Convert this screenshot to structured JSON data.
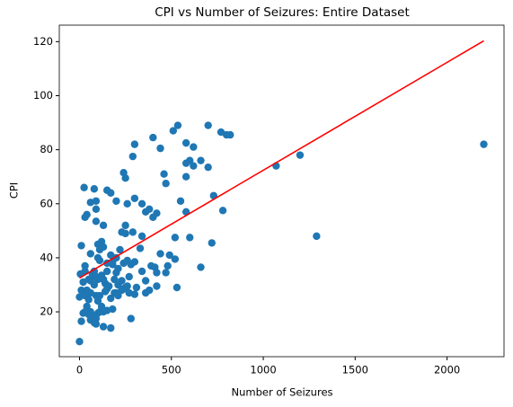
{
  "chart_data": {
    "type": "scatter",
    "title": "CPI vs Number of Seizures: Entire Dataset",
    "xlabel": "Number of Seizures",
    "ylabel": "CPI",
    "color": "#1f77b4",
    "x": [
      700,
      535,
      510,
      770,
      800,
      820,
      400,
      300,
      580,
      620,
      440,
      290,
      600,
      660,
      580,
      700,
      620,
      460,
      240,
      250,
      580,
      470,
      25,
      80,
      150,
      170,
      730,
      300,
      200,
      550,
      340,
      60,
      90,
      260,
      380,
      780,
      360,
      420,
      580,
      90,
      40,
      30,
      400,
      130,
      250,
      90,
      230,
      290,
      250,
      340,
      600,
      520,
      720,
      10,
      120,
      130,
      110,
      100,
      220,
      330,
      170,
      200,
      440,
      490,
      60,
      100,
      110,
      30,
      150,
      180,
      240,
      260,
      300,
      280,
      390,
      410,
      480,
      660,
      520,
      30,
      70,
      90,
      120,
      150,
      200,
      340,
      420,
      470,
      5,
      20,
      50,
      100,
      140,
      190,
      230,
      270,
      360,
      80,
      160,
      210,
      250,
      310,
      420,
      530,
      10,
      40,
      60,
      90,
      140,
      190,
      230,
      270,
      360,
      380,
      0,
      30,
      110,
      170,
      210,
      240,
      260,
      40,
      120,
      60,
      110,
      150,
      180,
      20,
      70,
      90,
      130,
      60,
      80,
      90,
      10,
      130,
      170,
      280,
      0,
      50,
      100,
      30,
      200,
      300,
      150,
      80,
      60,
      130,
      210,
      180,
      100,
      50,
      2200,
      1290,
      1200,
      1070
    ],
    "values": [
      89,
      89,
      87,
      86.5,
      85.5,
      85.5,
      84.5,
      82,
      82.5,
      81,
      80.5,
      77.5,
      76,
      76,
      75,
      73.5,
      74,
      71,
      71.5,
      69.5,
      70,
      67.5,
      66,
      65.5,
      65,
      64,
      63,
      62,
      61,
      61,
      60,
      60.5,
      61,
      60,
      58,
      57.5,
      57,
      56.5,
      57,
      58,
      56,
      55,
      55,
      52,
      52,
      53.5,
      49.5,
      49.5,
      49,
      48,
      47.5,
      47.5,
      45.5,
      44.5,
      46,
      44,
      43,
      45,
      43,
      43.5,
      41,
      40,
      41.5,
      41,
      41.5,
      40,
      39,
      37,
      38,
      37.5,
      38,
      39,
      38.5,
      37.5,
      37,
      36.5,
      37,
      36.5,
      39.5,
      35,
      34,
      33,
      33.5,
      35,
      34.5,
      35,
      34.5,
      34.5,
      34,
      31,
      32,
      32,
      30.5,
      32,
      31.5,
      33,
      31.5,
      30,
      29.5,
      30,
      29,
      29,
      29.5,
      29,
      28,
      28,
      27,
      26,
      27.5,
      27,
      28,
      27,
      27,
      28,
      25.5,
      26,
      26,
      25,
      26,
      28.5,
      29.5,
      22,
      22,
      20,
      20,
      20.5,
      21,
      19.5,
      18.5,
      17.5,
      20,
      17,
      16,
      15.5,
      16.5,
      14.5,
      14,
      17.5,
      9,
      19,
      19.5,
      20,
      27,
      26.5,
      28.5,
      35,
      31.5,
      32,
      36,
      38.5,
      24,
      24.5,
      82,
      48,
      78,
      74
    ],
    "fit": {
      "x": [
        0,
        2200
      ],
      "values": [
        32.5,
        120.3
      ],
      "color": "#ff0000"
    },
    "xlim": [
      -110,
      2310
    ],
    "xticks": [
      0,
      500,
      1000,
      1500,
      2000
    ],
    "ylim": [
      3.4,
      126.1
    ],
    "yticks": [
      20,
      40,
      60,
      80,
      100,
      120
    ]
  }
}
